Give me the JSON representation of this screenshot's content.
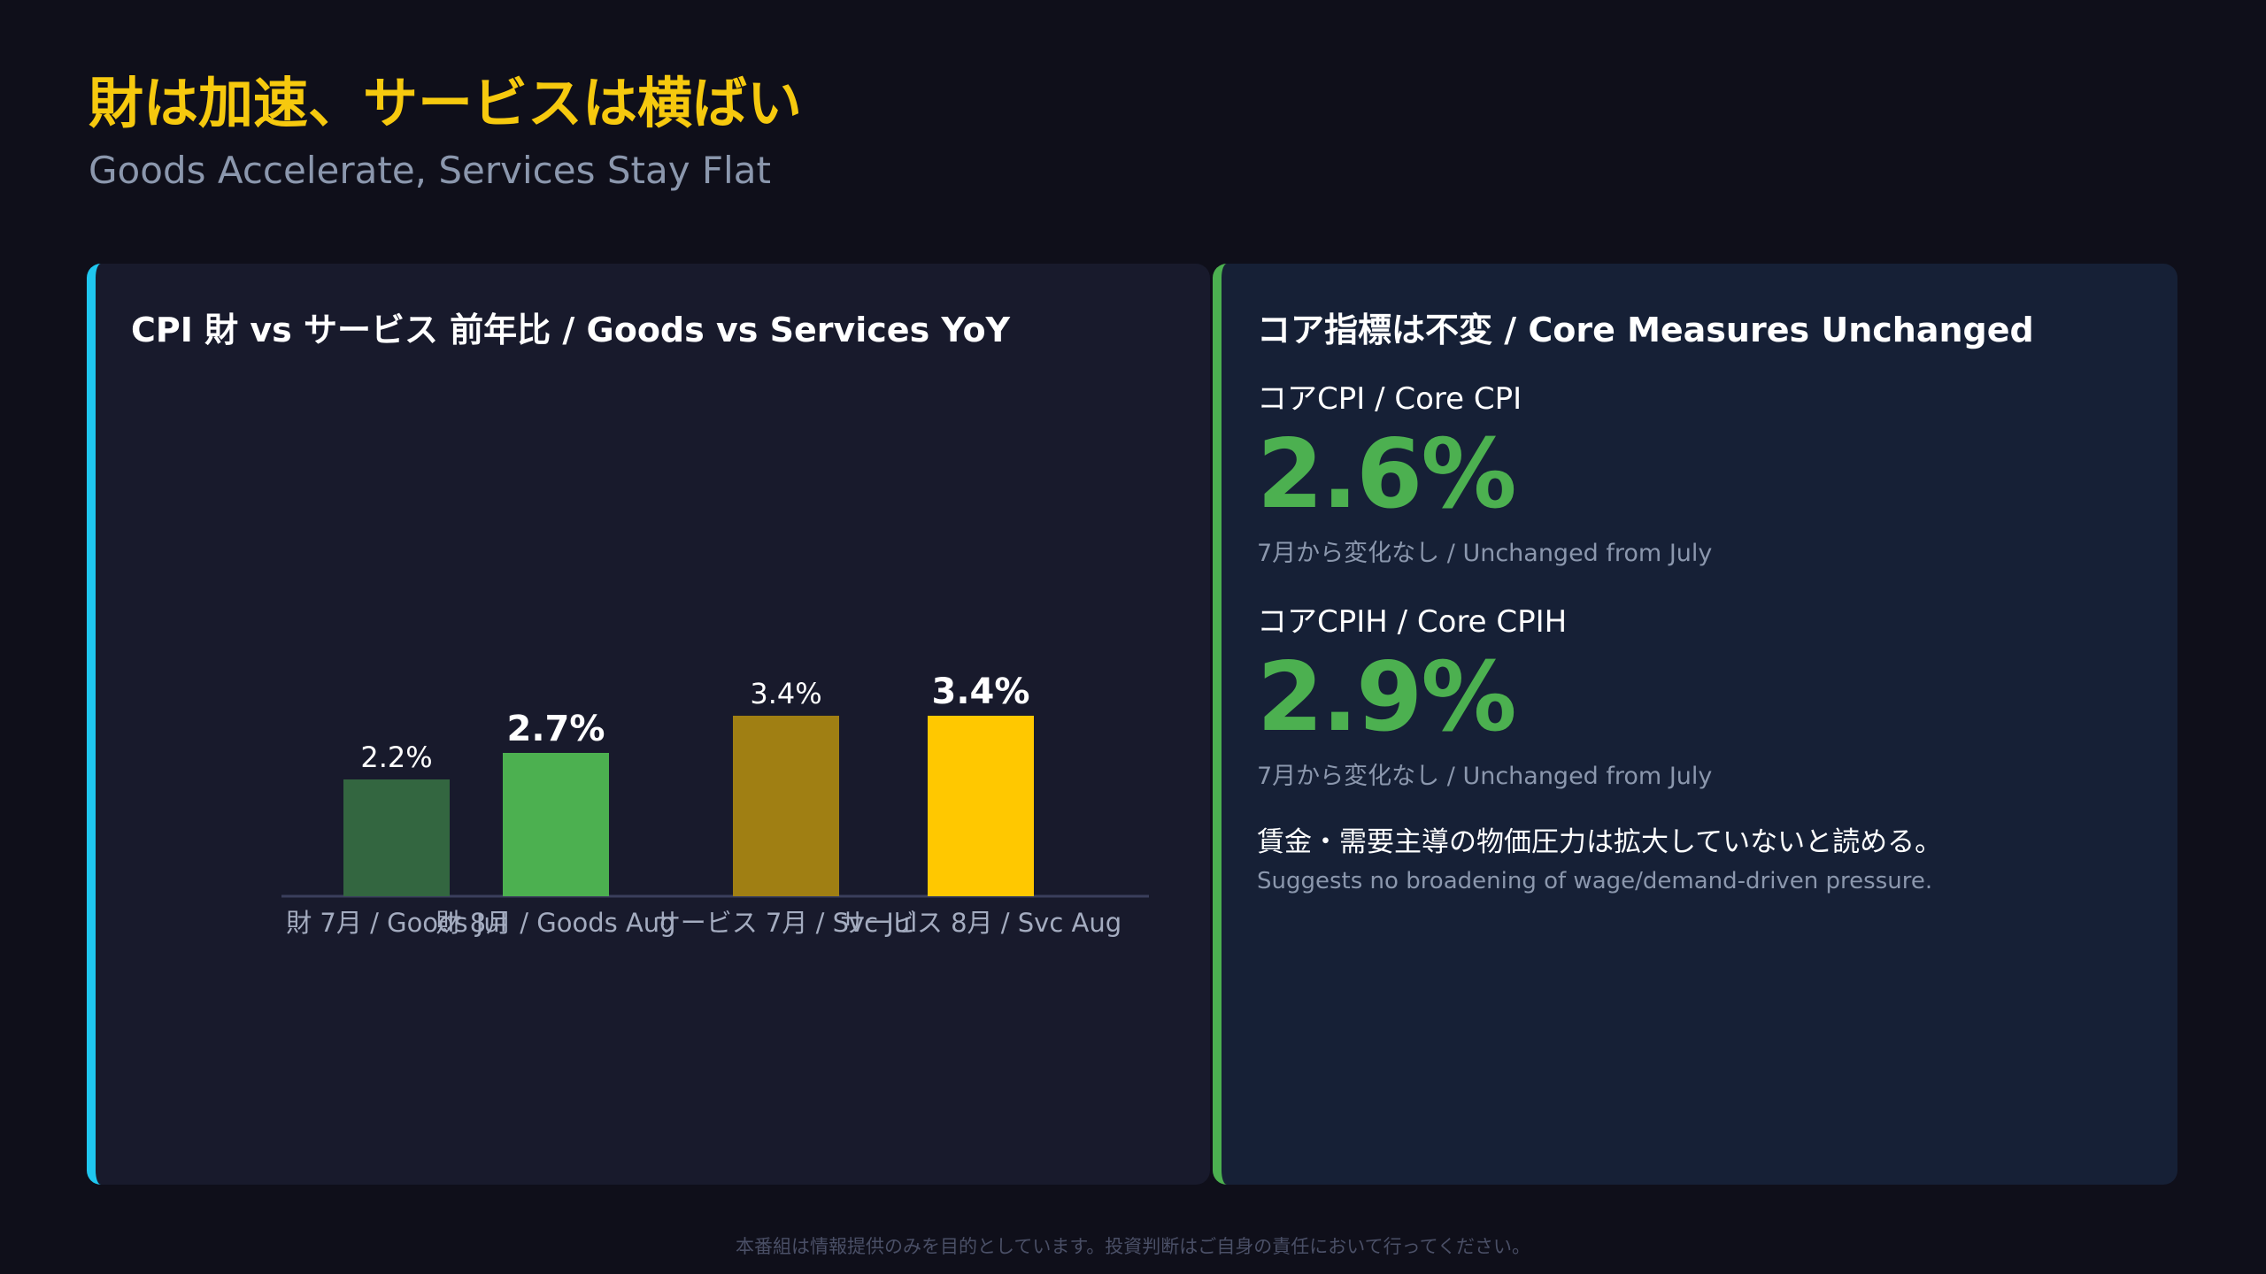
{
  "header": {
    "title": "財は加速、サービスは横ばい",
    "subtitle": "Goods Accelerate, Services Stay Flat"
  },
  "left_panel": {
    "title": "CPI 財 vs サービス 前年比 / Goods vs Services YoY",
    "accent": "#1fc7f0"
  },
  "chart_data": {
    "type": "bar",
    "title": "CPI 財 vs サービス 前年比 / Goods vs Services YoY",
    "categories": [
      "財 7月 / Goods Jul",
      "財 8月 / Goods Aug",
      "サービス 7月 / Svc Jul",
      "サービス 8月 / Svc Aug"
    ],
    "values": [
      2.2,
      2.7,
      3.4,
      3.4
    ],
    "value_labels": [
      "2.2%",
      "2.7%",
      "3.4%",
      "3.4%"
    ],
    "bar_colors": [
      "#336640",
      "#4cb050",
      "#a07f13",
      "#ffc800"
    ],
    "highlighted": [
      false,
      true,
      false,
      true
    ],
    "ylim": [
      0,
      5
    ],
    "grid": false,
    "xlabel": "",
    "ylabel": ""
  },
  "right_panel": {
    "title": "コア指標は不変 / Core Measures Unchanged",
    "accent": "#4cb050",
    "metrics": [
      {
        "label": "コアCPI / Core CPI",
        "value": "2.6%",
        "note": "7月から変化なし / Unchanged from July"
      },
      {
        "label": "コアCPIH / Core CPIH",
        "value": "2.9%",
        "note": "7月から変化なし / Unchanged from July"
      }
    ],
    "insight_jp": "賃金・需要主導の物価圧力は拡大していないと読める。",
    "insight_en": "Suggests no broadening of wage/demand-driven pressure."
  },
  "footer": {
    "disclaimer": "本番組は情報提供のみを目的としています。投資判断はご自身の責任において行ってください。"
  }
}
